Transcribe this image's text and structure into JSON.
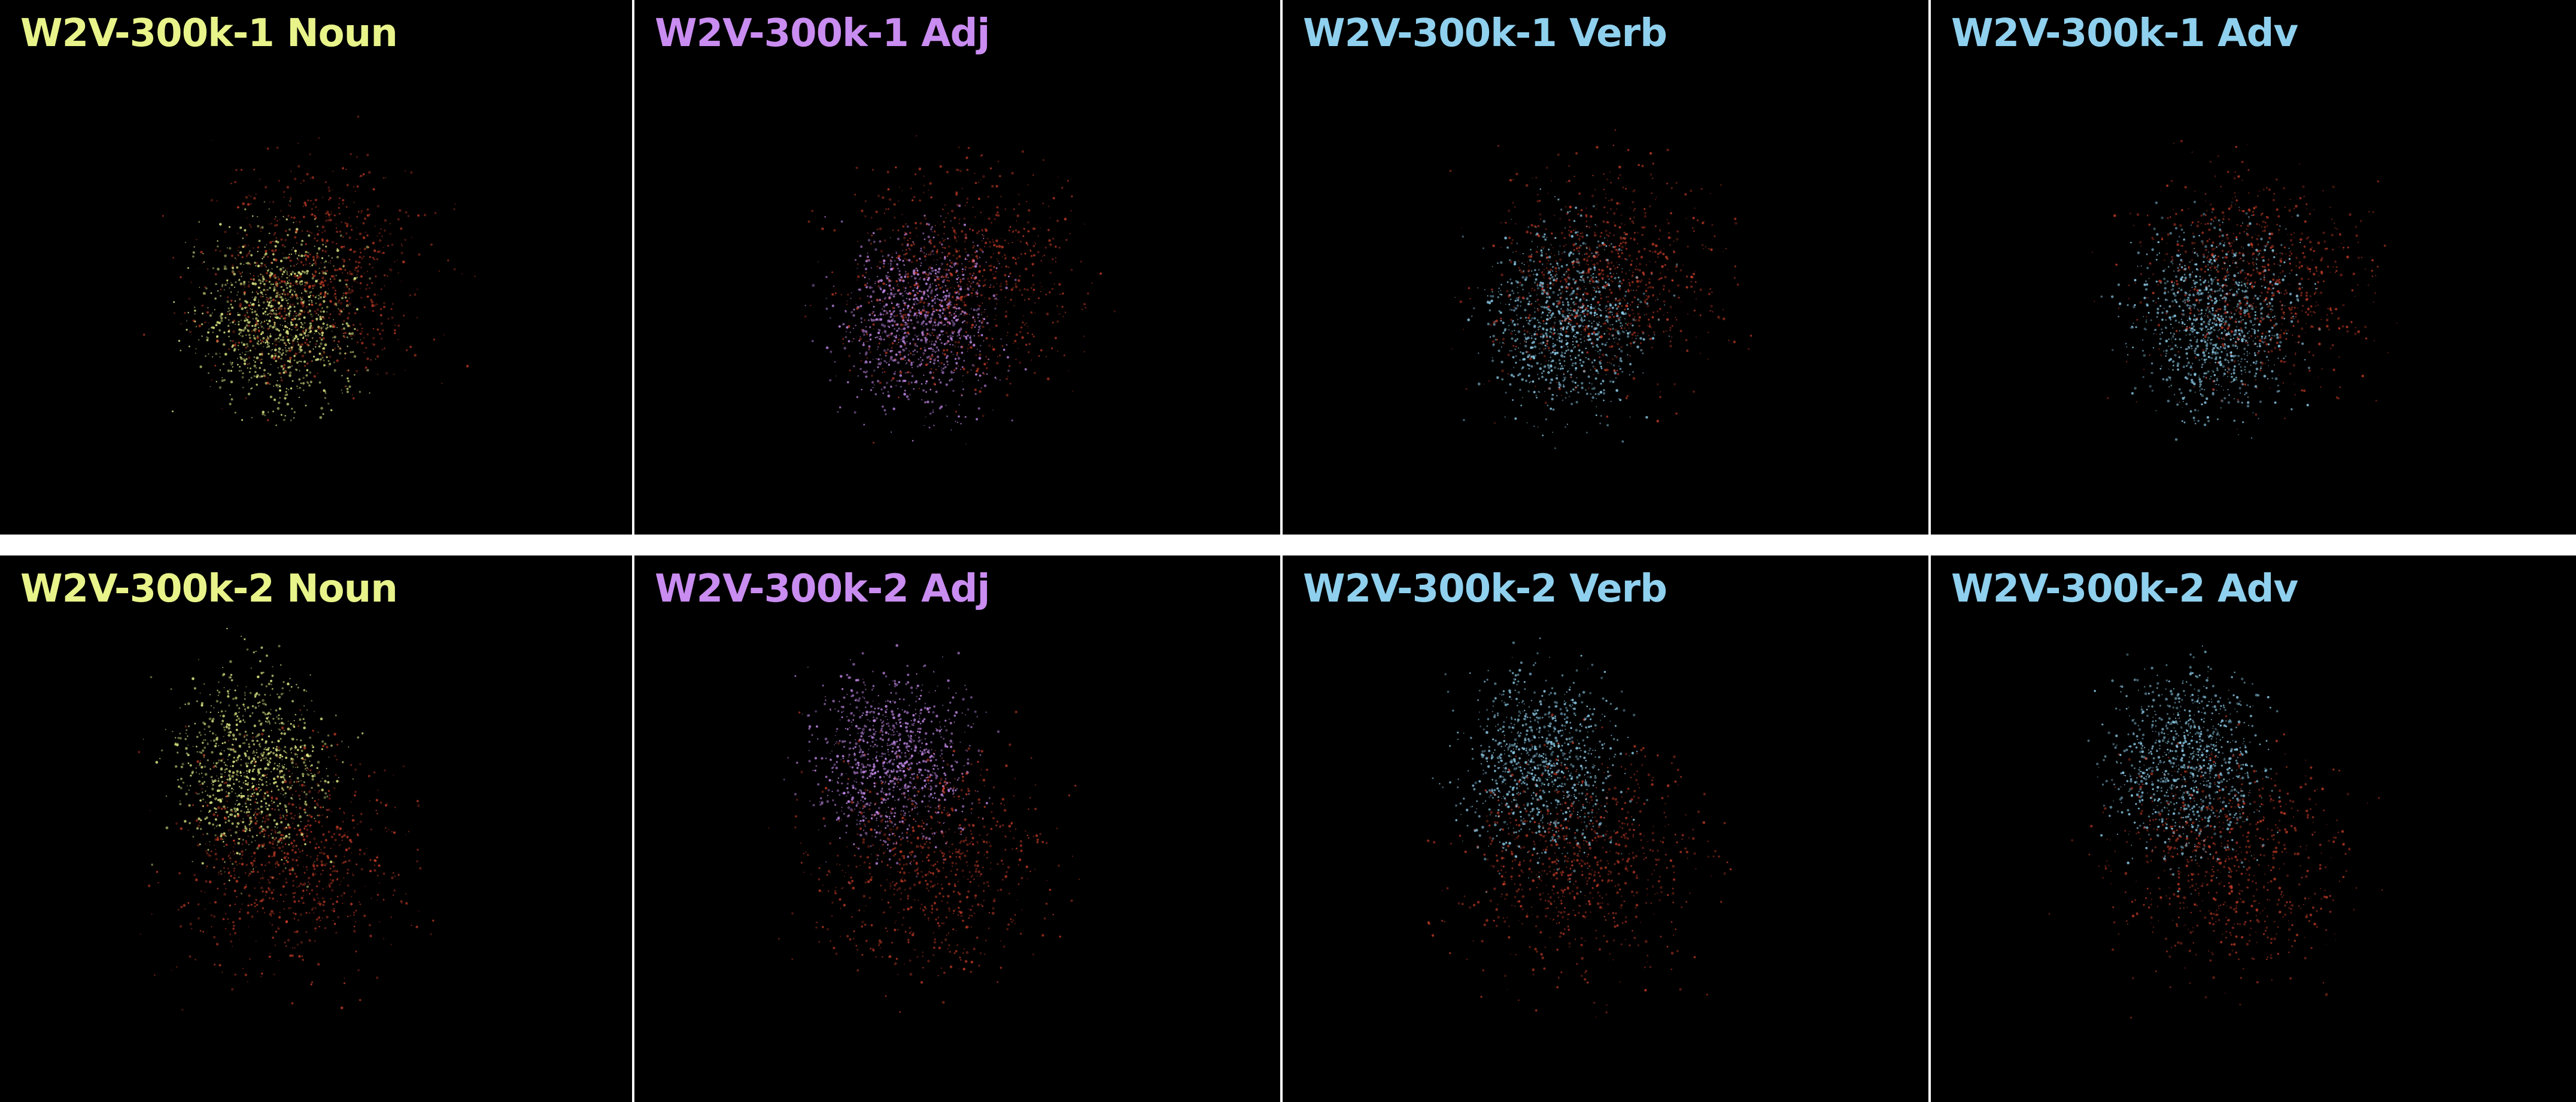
{
  "panels": [
    {
      "title": "W2V-300k-1 Noun",
      "highlight_color": "#e8f38a",
      "seed": 11,
      "row": 0
    },
    {
      "title": "W2V-300k-1 Adj",
      "highlight_color": "#c98cf0",
      "seed": 23,
      "row": 0
    },
    {
      "title": "W2V-300k-1 Verb",
      "highlight_color": "#8fd0ee",
      "seed": 37,
      "row": 0
    },
    {
      "title": "W2V-300k-1 Adv",
      "highlight_color": "#8fd0ee",
      "seed": 41,
      "row": 0
    },
    {
      "title": "W2V-300k-2 Noun",
      "highlight_color": "#e8f38a",
      "seed": 53,
      "row": 1
    },
    {
      "title": "W2V-300k-2 Adj",
      "highlight_color": "#c98cf0",
      "seed": 67,
      "row": 1
    },
    {
      "title": "W2V-300k-2 Verb",
      "highlight_color": "#8fd0ee",
      "seed": 71,
      "row": 1
    },
    {
      "title": "W2V-300k-2 Adv",
      "highlight_color": "#8fd0ee",
      "seed": 83,
      "row": 1
    }
  ],
  "colors": {
    "background": "#000000",
    "separator": "#ffffff",
    "other_pos_color": "#e0442c"
  }
}
